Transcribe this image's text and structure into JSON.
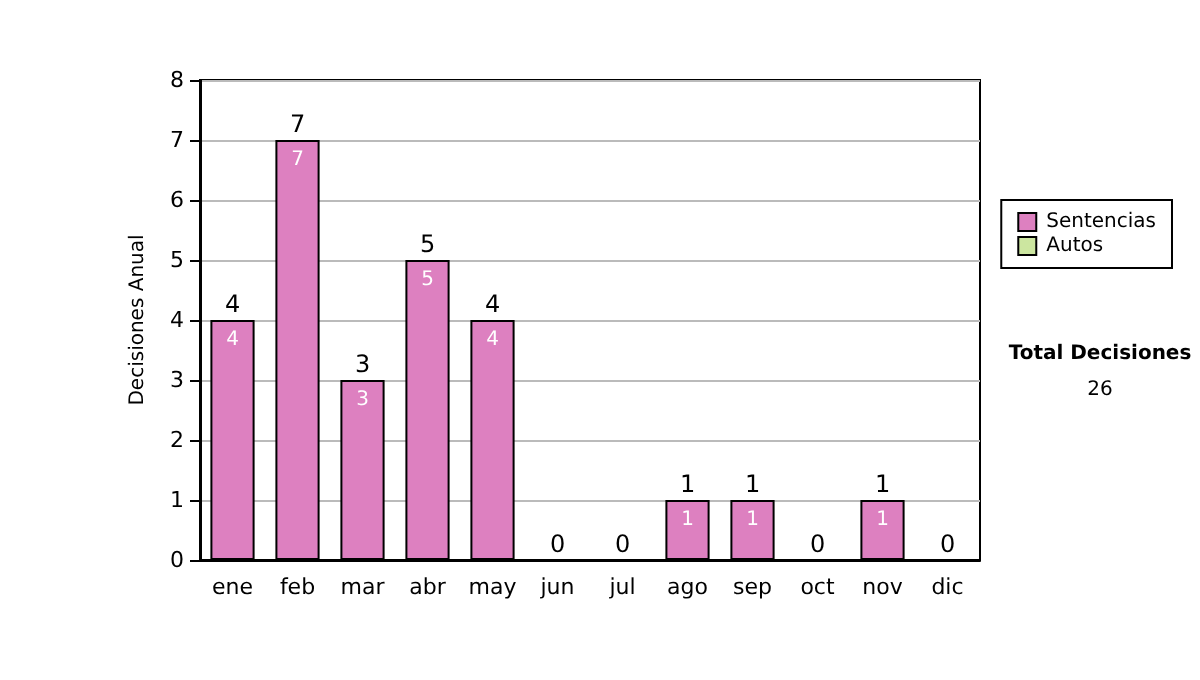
{
  "chart_data": {
    "type": "bar",
    "ylabel": "Decisiones Anual",
    "categories": [
      "ene",
      "feb",
      "mar",
      "abr",
      "may",
      "jun",
      "jul",
      "ago",
      "sep",
      "oct",
      "nov",
      "dic"
    ],
    "stacked": true,
    "series": [
      {
        "name": "Sentencias",
        "color": "#dd80c0",
        "values": [
          4,
          7,
          3,
          5,
          4,
          0,
          0,
          1,
          1,
          0,
          1,
          0
        ],
        "value_labels": [
          "4",
          "7",
          "3",
          "5",
          "4",
          null,
          null,
          "1",
          "1",
          null,
          "1",
          null
        ]
      },
      {
        "name": "Autos",
        "color": "#cce6a0",
        "values": [
          0,
          0,
          0,
          0,
          0,
          0,
          0,
          0,
          0,
          0,
          0,
          0
        ]
      }
    ],
    "totals": [
      "4",
      "7",
      "3",
      "5",
      "4",
      "0",
      "0",
      "1",
      "1",
      "0",
      "1",
      "0"
    ],
    "ylim": [
      0,
      8
    ],
    "yticks": [
      0,
      1,
      2,
      3,
      4,
      5,
      6,
      7,
      8
    ],
    "grid": "y",
    "legend": "right",
    "annotations": [
      "Total Decisiones",
      "26"
    ]
  }
}
